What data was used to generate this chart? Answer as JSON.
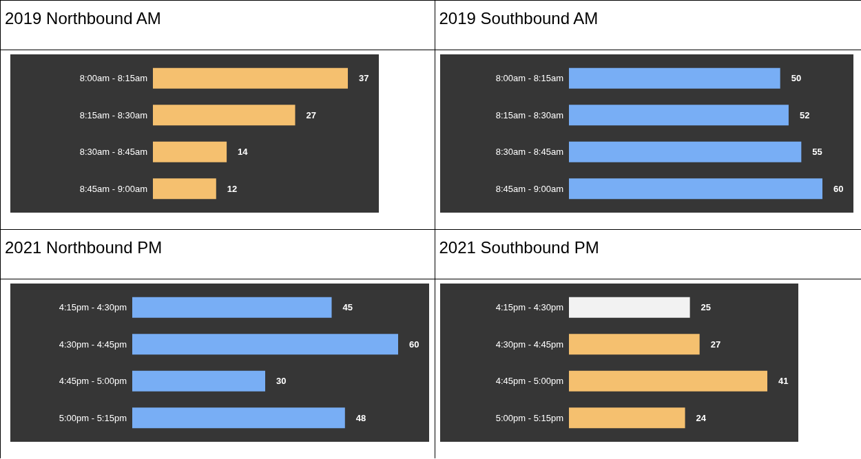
{
  "chart_data": [
    {
      "type": "bar",
      "orientation": "horizontal",
      "title": "2019 Northbound AM",
      "categories": [
        "8:00am - 8:15am",
        "8:15am - 8:30am",
        "8:30am - 8:45am",
        "8:45am - 9:00am"
      ],
      "values": [
        37,
        27,
        14,
        12
      ],
      "color": "#f5c06f",
      "data_labels": true
    },
    {
      "type": "bar",
      "orientation": "horizontal",
      "title": "2019 Southbound AM",
      "categories": [
        "8:00am - 8:15am",
        "8:15am - 8:30am",
        "8:30am - 8:45am",
        "8:45am - 9:00am"
      ],
      "values": [
        50,
        52,
        55,
        60
      ],
      "color": "#78aef5",
      "data_labels": true
    },
    {
      "type": "bar",
      "orientation": "horizontal",
      "title": "2021 Northbound PM",
      "categories": [
        "4:15pm - 4:30pm",
        "4:30pm - 4:45pm",
        "4:45pm - 5:00pm",
        "5:00pm - 5:15pm"
      ],
      "values": [
        45,
        60,
        30,
        48
      ],
      "color": "#78aef5",
      "data_labels": true
    },
    {
      "type": "bar",
      "orientation": "horizontal",
      "title": "2021 Southbound PM",
      "categories": [
        "4:15pm - 4:30pm",
        "4:30pm - 4:45pm",
        "4:45pm - 5:00pm",
        "5:00pm - 5:15pm"
      ],
      "values": [
        25,
        27,
        41,
        24
      ],
      "colors": [
        "#f2f2f2",
        "#f5c06f",
        "#f5c06f",
        "#f5c06f"
      ],
      "data_labels": true
    }
  ]
}
